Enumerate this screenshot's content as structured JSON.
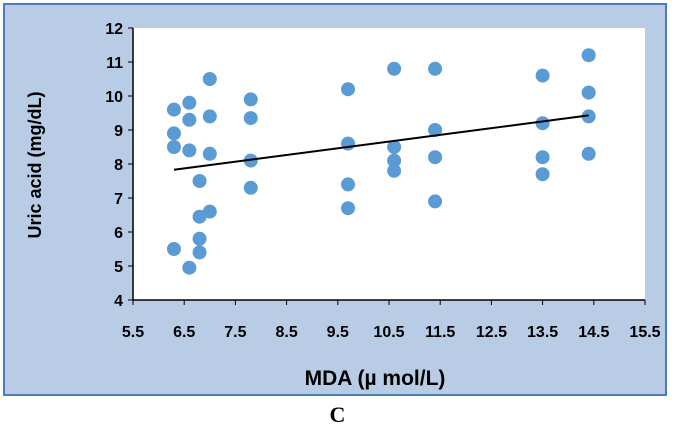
{
  "chart_data": {
    "type": "scatter",
    "xlabel": "MDA (µ mol/L)",
    "ylabel": "Uric acid (mg/dL)",
    "xlim": [
      5.5,
      15.5
    ],
    "ylim": [
      4,
      12
    ],
    "xticks": [
      "5.5",
      "6.5",
      "7.5",
      "8.5",
      "9.5",
      "10.5",
      "11.5",
      "12.5",
      "13.5",
      "14.5",
      "15.5"
    ],
    "yticks": [
      "4",
      "5",
      "6",
      "7",
      "8",
      "9",
      "10",
      "11",
      "12"
    ],
    "grid": false,
    "marker_color": "#5b9bd5",
    "trendline_color": "#000000",
    "background_color": "#b8cce6",
    "plot_background": "#ffffff",
    "border_color": "#4a7ebb",
    "series": [
      {
        "points": [
          [
            6.3,
            9.6
          ],
          [
            6.3,
            8.9
          ],
          [
            6.3,
            8.5
          ],
          [
            6.3,
            5.5
          ],
          [
            6.6,
            9.8
          ],
          [
            6.6,
            9.3
          ],
          [
            6.6,
            8.4
          ],
          [
            6.6,
            4.95
          ],
          [
            6.8,
            7.5
          ],
          [
            6.8,
            6.45
          ],
          [
            6.8,
            5.8
          ],
          [
            6.8,
            5.4
          ],
          [
            7.0,
            10.5
          ],
          [
            7.0,
            9.4
          ],
          [
            7.0,
            8.3
          ],
          [
            7.0,
            6.6
          ],
          [
            7.8,
            9.9
          ],
          [
            7.8,
            9.35
          ],
          [
            7.8,
            8.1
          ],
          [
            7.8,
            7.3
          ],
          [
            9.7,
            10.2
          ],
          [
            9.7,
            8.6
          ],
          [
            9.7,
            7.4
          ],
          [
            9.7,
            6.7
          ],
          [
            10.6,
            10.8
          ],
          [
            10.6,
            8.5
          ],
          [
            10.6,
            8.1
          ],
          [
            10.6,
            7.8
          ],
          [
            11.4,
            10.8
          ],
          [
            11.4,
            9.0
          ],
          [
            11.4,
            8.2
          ],
          [
            11.4,
            6.9
          ],
          [
            13.5,
            10.6
          ],
          [
            13.5,
            9.2
          ],
          [
            13.5,
            8.2
          ],
          [
            13.5,
            7.7
          ],
          [
            14.4,
            11.2
          ],
          [
            14.4,
            10.1
          ],
          [
            14.4,
            9.4
          ],
          [
            14.4,
            8.3
          ]
        ]
      }
    ],
    "trendline": [
      [
        6.3,
        7.83
      ],
      [
        14.4,
        9.43
      ]
    ]
  },
  "panel_label": "C"
}
